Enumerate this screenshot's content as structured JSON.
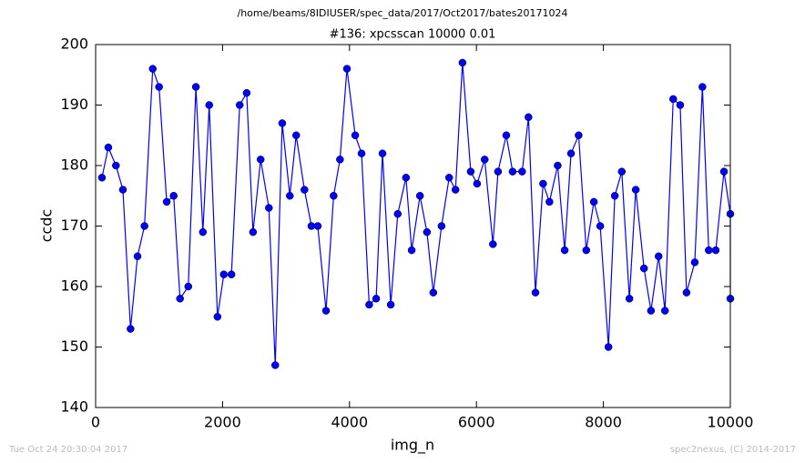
{
  "chart_data": {
    "type": "line",
    "suptitle": "/home/beams/8IDIUSER/spec_data/2017/Oct2017/bates20171024",
    "title": "#136: xpcsscan 10000 0.01",
    "xlabel": "img_n",
    "ylabel": "ccdc",
    "footer_left": "Tue Oct 24 20:30:04 2017",
    "footer_right": "spec2nexus, (C) 2014-2017",
    "xlim": [
      0,
      10000
    ],
    "xticks": [
      0,
      2000,
      4000,
      6000,
      8000,
      10000
    ],
    "ylim": [
      140,
      200
    ],
    "yticks": [
      140,
      150,
      160,
      170,
      180,
      190,
      200
    ],
    "grid": false,
    "series": [
      {
        "name": "ccdc",
        "color": "#0000ff",
        "x": [
          100,
          200,
          320,
          430,
          550,
          660,
          770,
          900,
          1000,
          1120,
          1230,
          1330,
          1460,
          1580,
          1690,
          1790,
          1920,
          2020,
          2140,
          2270,
          2380,
          2480,
          2600,
          2730,
          2830,
          2940,
          3060,
          3160,
          3290,
          3400,
          3500,
          3630,
          3750,
          3850,
          3960,
          4090,
          4190,
          4310,
          4420,
          4520,
          4650,
          4760,
          4890,
          4980,
          5110,
          5220,
          5320,
          5450,
          5570,
          5670,
          5780,
          5910,
          6010,
          6130,
          6260,
          6340,
          6470,
          6570,
          6720,
          6820,
          6930,
          7050,
          7150,
          7280,
          7390,
          7490,
          7610,
          7730,
          7850,
          7950,
          8080,
          8180,
          8290,
          8410,
          8510,
          8640,
          8750,
          8870,
          8970,
          9100,
          9210,
          9310,
          9440,
          9560,
          9660,
          9770,
          9900,
          10000,
          10000
        ],
        "values": [
          178,
          183,
          180,
          176,
          153,
          165,
          170,
          196,
          193,
          174,
          175,
          158,
          160,
          193,
          169,
          190,
          155,
          162,
          162,
          190,
          192,
          169,
          181,
          173,
          147,
          187,
          175,
          185,
          176,
          170,
          170,
          156,
          175,
          181,
          196,
          185,
          182,
          157,
          158,
          182,
          157,
          172,
          178,
          166,
          175,
          169,
          159,
          170,
          178,
          176,
          197,
          179,
          177,
          181,
          167,
          179,
          185,
          179,
          179,
          188,
          159,
          177,
          174,
          180,
          166,
          182,
          185,
          166,
          174,
          170,
          150,
          175,
          179,
          158,
          176,
          163,
          156,
          165,
          156,
          191,
          190,
          159,
          164,
          193,
          166,
          166,
          179,
          172,
          158
        ]
      }
    ]
  }
}
